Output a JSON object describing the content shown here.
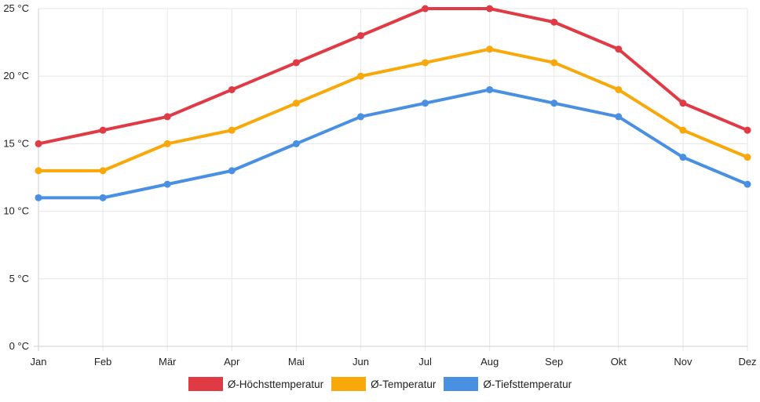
{
  "chart_data": {
    "type": "line",
    "categories": [
      "Jan",
      "Feb",
      "Mär",
      "Apr",
      "Mai",
      "Jun",
      "Jul",
      "Aug",
      "Sep",
      "Okt",
      "Nov",
      "Dez"
    ],
    "y_ticks": [
      0,
      5,
      10,
      15,
      20,
      25
    ],
    "y_unit": "°C",
    "ylim": [
      0,
      25
    ],
    "grid": true,
    "legend_position": "bottom",
    "series": [
      {
        "name": "Ø-Höchsttemperatur",
        "color": "#e03a44",
        "values": [
          15,
          16,
          17,
          19,
          21,
          23,
          25,
          25,
          24,
          22,
          18,
          16
        ]
      },
      {
        "name": "Ø-Temperatur",
        "color": "#f8a808",
        "values": [
          13,
          13,
          15,
          16,
          18,
          20,
          21,
          22,
          21,
          19,
          16,
          14
        ]
      },
      {
        "name": "Ø-Tiefsttemperatur",
        "color": "#4a90e2",
        "values": [
          11,
          11,
          12,
          13,
          15,
          17,
          18,
          19,
          18,
          17,
          14,
          12
        ]
      }
    ]
  }
}
